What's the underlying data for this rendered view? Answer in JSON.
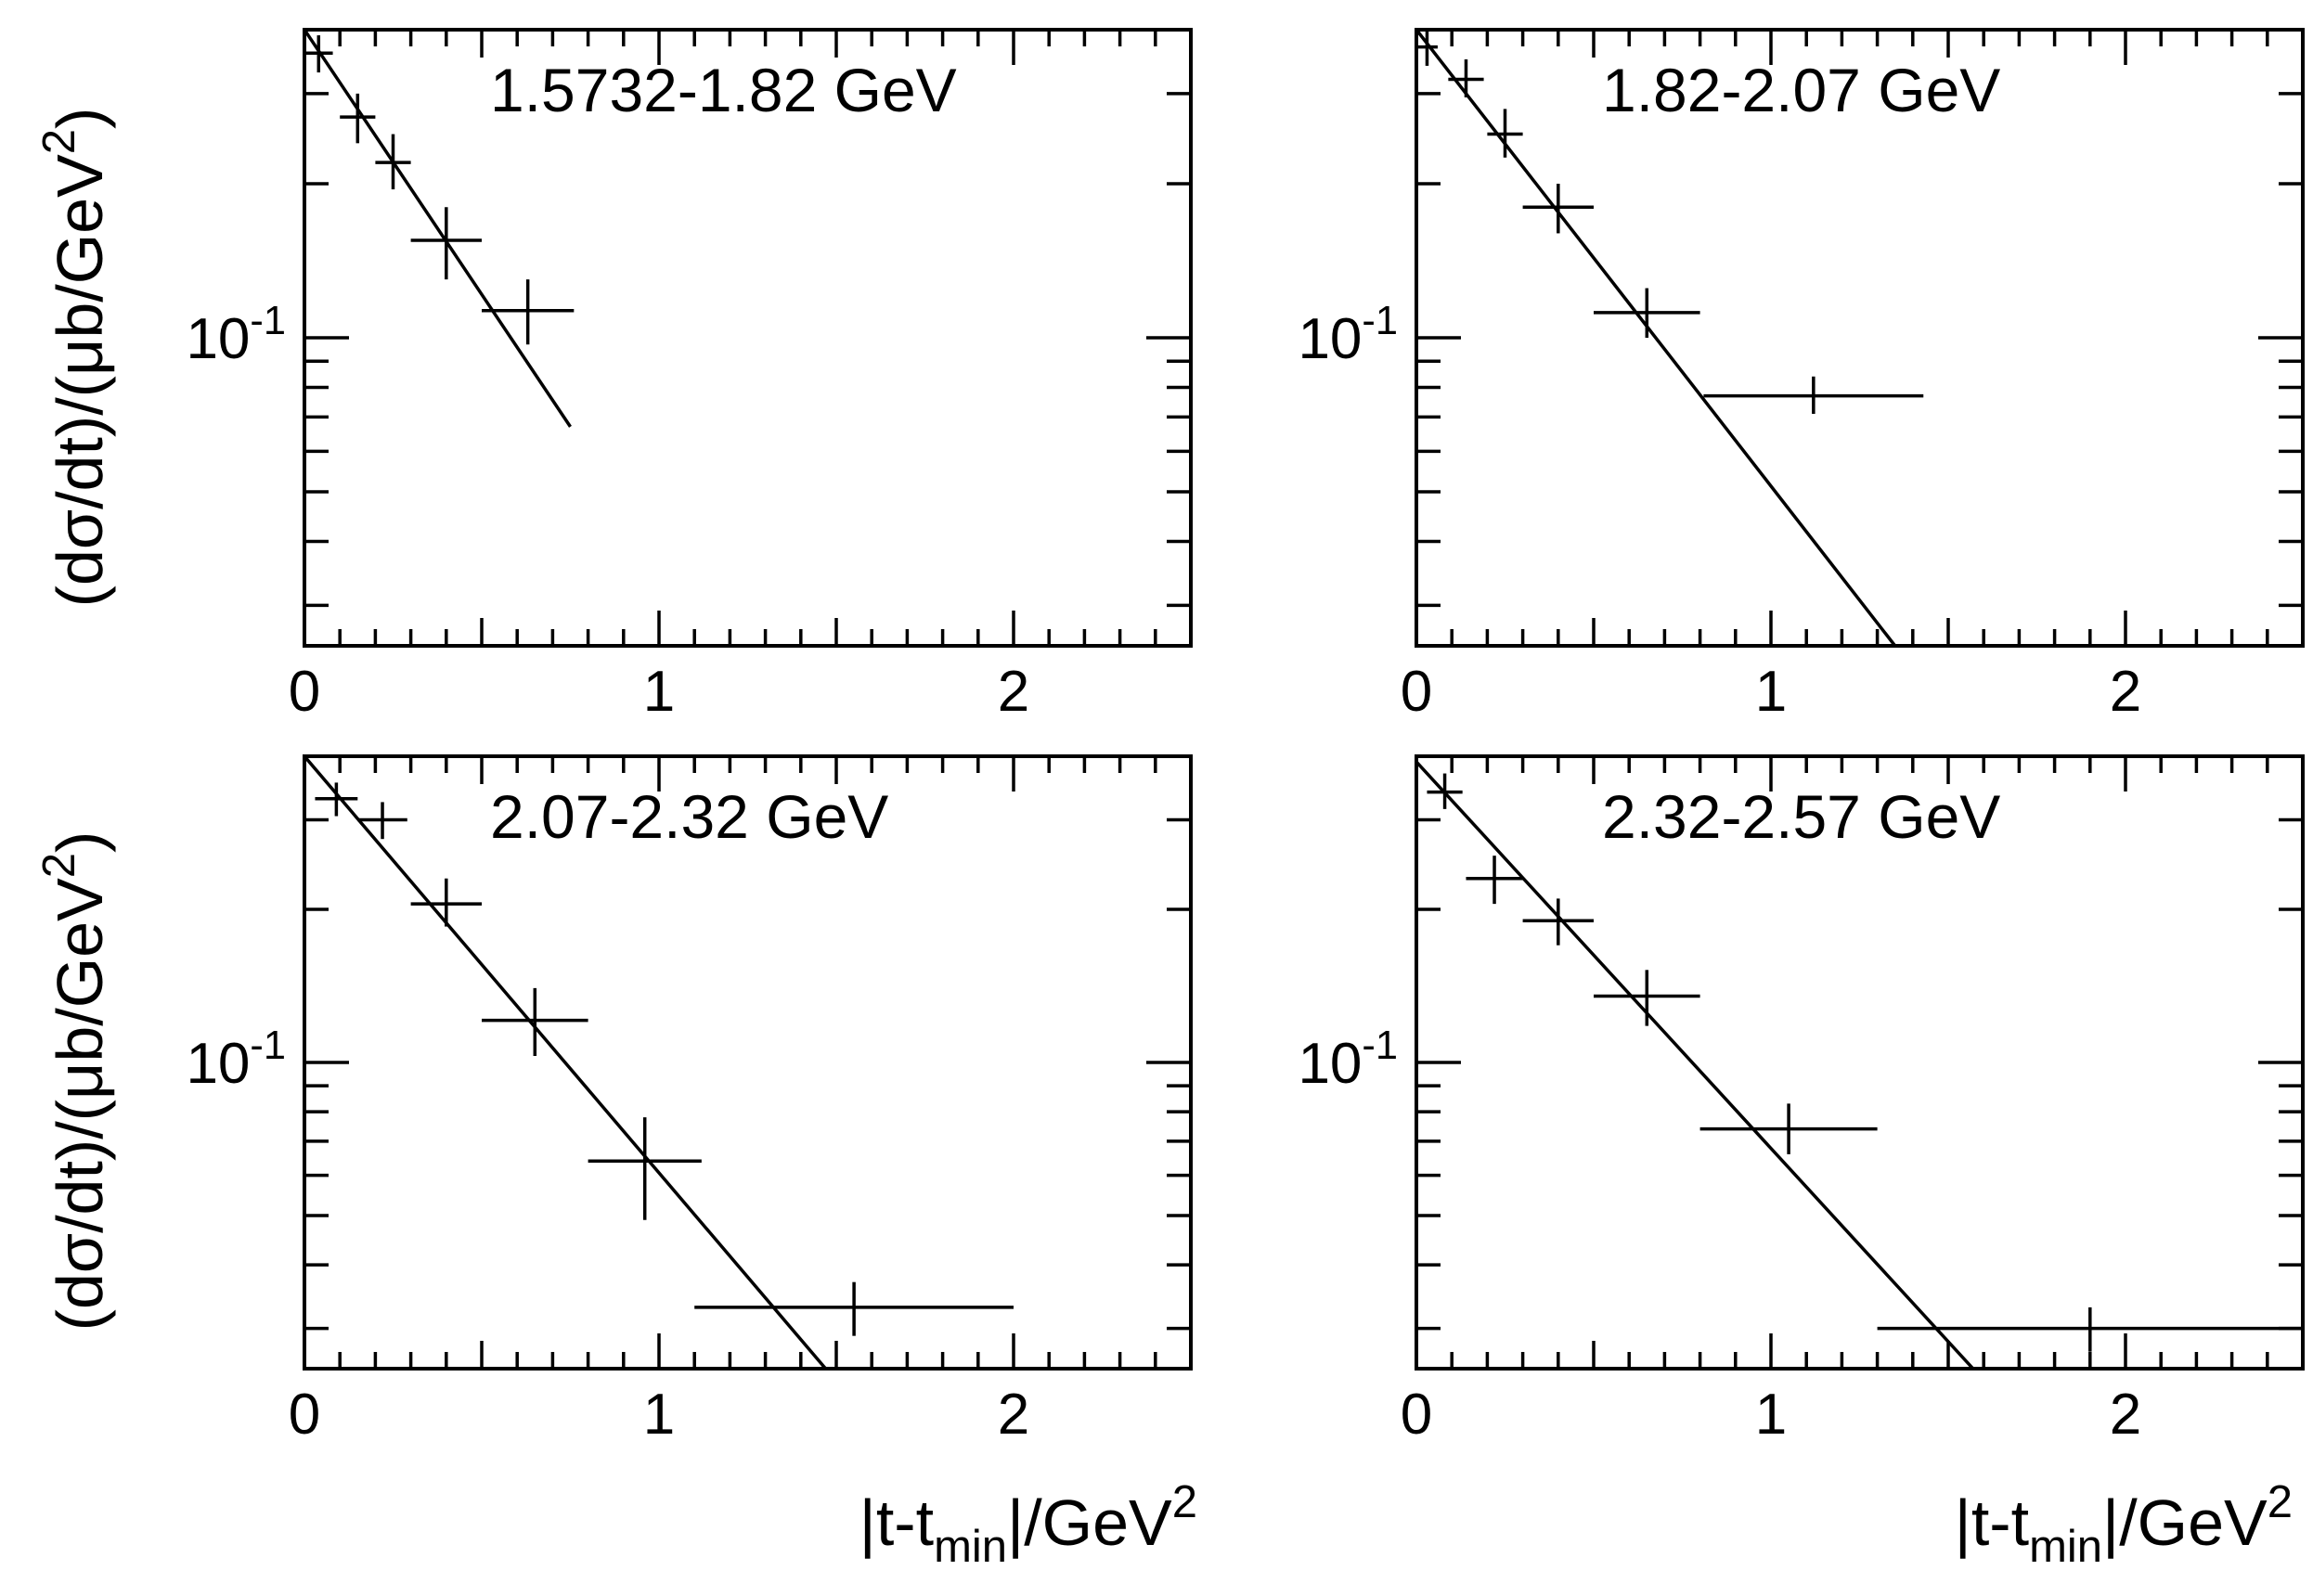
{
  "colors": {
    "ink": "#000000",
    "background": "#ffffff"
  },
  "figure": {
    "ylabel": "(dσ/dt)/(μb/GeV²)",
    "xlabel": "|t-t_min|/GeV²"
  },
  "chart_data": [
    {
      "type": "scatter",
      "title": "1.5732-1.82 GeV",
      "xlabel": "",
      "ylabel": "(dσ/dt)/(μb/GeV²)",
      "y_scale": "log",
      "xlim": [
        0,
        2.5
      ],
      "ylim": [
        0.025,
        0.4
      ],
      "x_ticks": [
        "0",
        "1",
        "2"
      ],
      "y_ticks": [
        "10^-1"
      ],
      "series": [
        {
          "points": [
            {
              "x": 0.04,
              "xerr": 0.04,
              "y": 0.36,
              "ylow": 0.33,
              "yhigh": 0.39
            },
            {
              "x": 0.15,
              "xerr": 0.05,
              "y": 0.27,
              "ylow": 0.24,
              "yhigh": 0.3
            },
            {
              "x": 0.25,
              "xerr": 0.05,
              "y": 0.22,
              "ylow": 0.195,
              "yhigh": 0.25
            },
            {
              "x": 0.4,
              "xerr": 0.1,
              "y": 0.155,
              "ylow": 0.13,
              "yhigh": 0.18
            },
            {
              "x": 0.63,
              "xerr": 0.13,
              "y": 0.113,
              "ylow": 0.097,
              "yhigh": 0.13
            }
          ],
          "fit_line": {
            "x": [
              0.0,
              0.75
            ],
            "y": [
              0.4,
              0.067
            ]
          }
        }
      ]
    },
    {
      "type": "scatter",
      "title": "1.82-2.07 GeV",
      "xlabel": "",
      "ylabel": "",
      "y_scale": "log",
      "xlim": [
        0,
        2.5
      ],
      "ylim": [
        0.025,
        0.4
      ],
      "x_ticks": [
        "0",
        "1",
        "2"
      ],
      "y_ticks": [
        "10^-1"
      ],
      "series": [
        {
          "points": [
            {
              "x": 0.03,
              "xerr": 0.03,
              "y": 0.37,
              "ylow": 0.34,
              "yhigh": 0.4
            },
            {
              "x": 0.14,
              "xerr": 0.05,
              "y": 0.32,
              "ylow": 0.295,
              "yhigh": 0.35
            },
            {
              "x": 0.25,
              "xerr": 0.05,
              "y": 0.25,
              "ylow": 0.225,
              "yhigh": 0.28
            },
            {
              "x": 0.4,
              "xerr": 0.1,
              "y": 0.18,
              "ylow": 0.16,
              "yhigh": 0.2
            },
            {
              "x": 0.65,
              "xerr": 0.15,
              "y": 0.112,
              "ylow": 0.1,
              "yhigh": 0.125
            },
            {
              "x": 1.12,
              "xerr": 0.31,
              "y": 0.077,
              "ylow": 0.071,
              "yhigh": 0.084
            }
          ],
          "fit_line": {
            "x": [
              0.0,
              1.35
            ],
            "y": [
              0.4,
              0.025
            ]
          }
        }
      ]
    },
    {
      "type": "scatter",
      "title": "2.07-2.32 GeV",
      "xlabel": "|t-t_min|/GeV²",
      "ylabel": "(dσ/dt)/(μb/GeV²)",
      "y_scale": "log",
      "xlim": [
        0,
        2.5
      ],
      "ylim": [
        0.025,
        0.4
      ],
      "x_ticks": [
        "0",
        "1",
        "2"
      ],
      "y_ticks": [
        "10^-1"
      ],
      "series": [
        {
          "points": [
            {
              "x": 0.09,
              "xerr": 0.06,
              "y": 0.33,
              "ylow": 0.305,
              "yhigh": 0.355
            },
            {
              "x": 0.22,
              "xerr": 0.07,
              "y": 0.3,
              "ylow": 0.275,
              "yhigh": 0.325
            },
            {
              "x": 0.4,
              "xerr": 0.1,
              "y": 0.205,
              "ylow": 0.185,
              "yhigh": 0.23
            },
            {
              "x": 0.65,
              "xerr": 0.15,
              "y": 0.121,
              "ylow": 0.103,
              "yhigh": 0.14
            },
            {
              "x": 0.96,
              "xerr": 0.16,
              "y": 0.064,
              "ylow": 0.049,
              "yhigh": 0.078
            },
            {
              "x": 1.55,
              "xerr": 0.45,
              "y": 0.033,
              "ylow": 0.029,
              "yhigh": 0.037
            }
          ],
          "fit_line": {
            "x": [
              0.0,
              1.47
            ],
            "y": [
              0.4,
              0.025
            ]
          }
        }
      ]
    },
    {
      "type": "scatter",
      "title": "2.32-2.57 GeV",
      "xlabel": "|t-t_min|/GeV²",
      "ylabel": "",
      "y_scale": "log",
      "xlim": [
        0,
        2.5
      ],
      "ylim": [
        0.025,
        0.4
      ],
      "x_ticks": [
        "0",
        "1",
        "2"
      ],
      "y_ticks": [
        "10^-1"
      ],
      "series": [
        {
          "points": [
            {
              "x": 0.08,
              "xerr": 0.05,
              "y": 0.34,
              "ylow": 0.315,
              "yhigh": 0.37
            },
            {
              "x": 0.22,
              "xerr": 0.08,
              "y": 0.23,
              "ylow": 0.205,
              "yhigh": 0.255
            },
            {
              "x": 0.4,
              "xerr": 0.1,
              "y": 0.19,
              "ylow": 0.17,
              "yhigh": 0.21
            },
            {
              "x": 0.65,
              "xerr": 0.15,
              "y": 0.135,
              "ylow": 0.118,
              "yhigh": 0.152
            },
            {
              "x": 1.05,
              "xerr": 0.25,
              "y": 0.074,
              "ylow": 0.066,
              "yhigh": 0.083
            },
            {
              "x": 1.9,
              "xerr": 0.6,
              "y": 0.03,
              "ylow": 0.027,
              "yhigh": 0.033
            }
          ],
          "fit_line": {
            "x": [
              0.0,
              1.57
            ],
            "y": [
              0.39,
              0.025
            ]
          }
        }
      ]
    }
  ]
}
